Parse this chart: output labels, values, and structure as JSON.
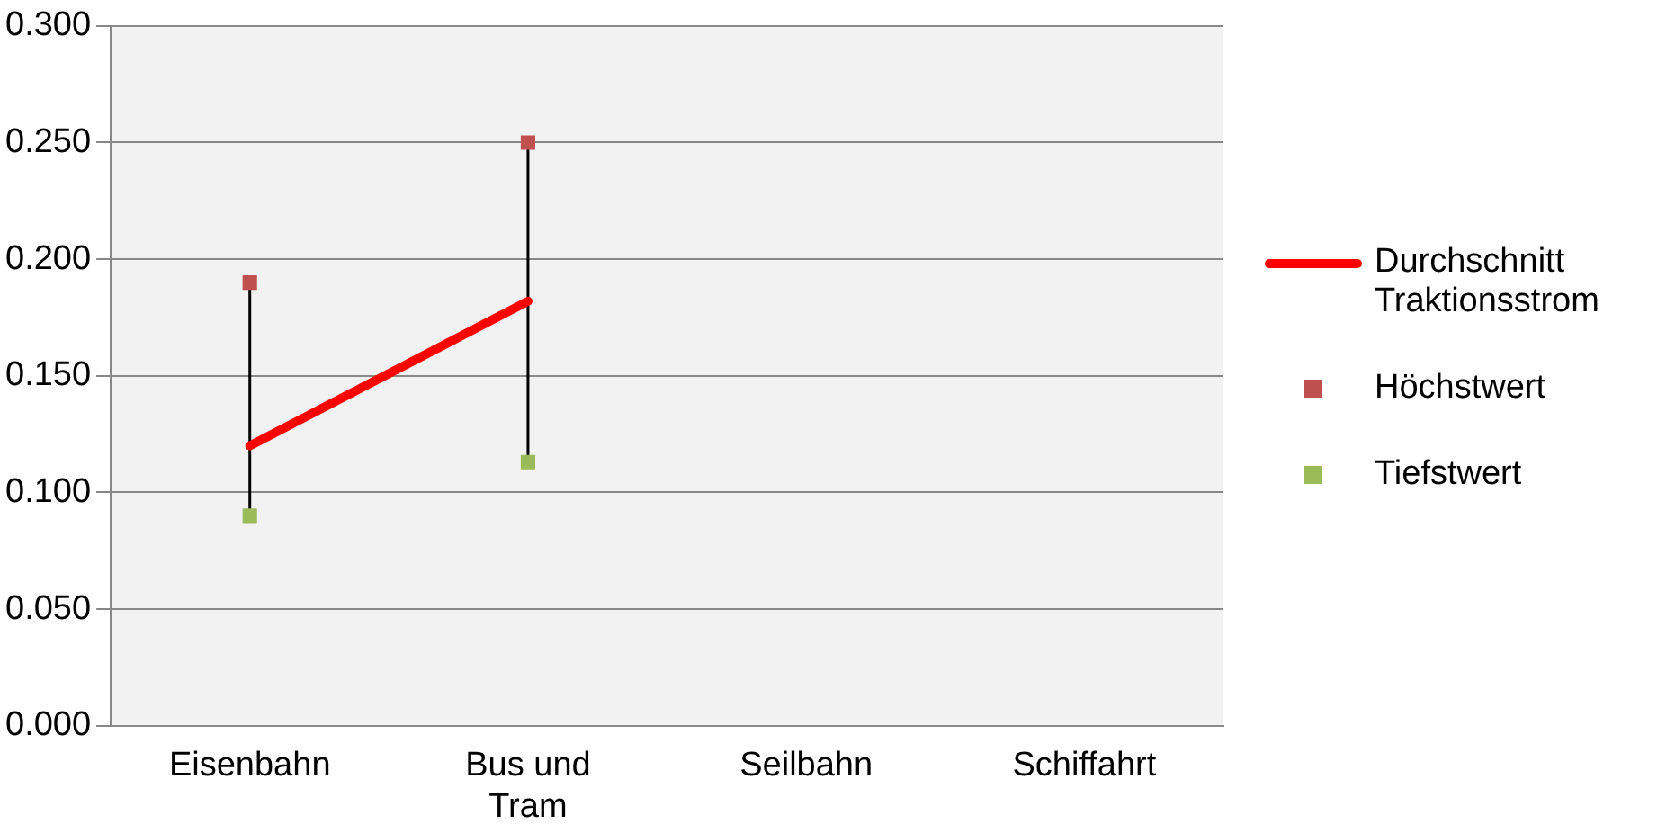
{
  "chart_data": {
    "type": "line",
    "categories": [
      "Eisenbahn",
      "Bus und Tram",
      "Seilbahn",
      "Schiffahrt"
    ],
    "series": [
      {
        "name": "Durchschnitt Traktionsstrom",
        "color": "#ff0000",
        "marker": "none",
        "values": [
          0.12,
          0.182,
          null,
          null
        ]
      },
      {
        "name": "Höchstwert",
        "type": "scatter",
        "color": "#c0504d",
        "marker": "square",
        "values": [
          0.19,
          0.25,
          null,
          null
        ]
      },
      {
        "name": "Tiefstwert",
        "type": "scatter",
        "color": "#9bbb59",
        "marker": "square",
        "values": [
          0.09,
          0.113,
          null,
          null
        ]
      }
    ],
    "ylim": [
      0,
      0.3
    ],
    "yticks": [
      {
        "value": 0,
        "label": "0.000"
      },
      {
        "value": 0.05,
        "label": "0.050"
      },
      {
        "value": 0.1,
        "label": "0.100"
      },
      {
        "value": 0.15,
        "label": "0.150"
      },
      {
        "value": 0.2,
        "label": "0.200"
      },
      {
        "value": 0.25,
        "label": "0.250"
      },
      {
        "value": 0.3,
        "label": "0.300"
      }
    ],
    "grid": "y",
    "legend": "right"
  }
}
